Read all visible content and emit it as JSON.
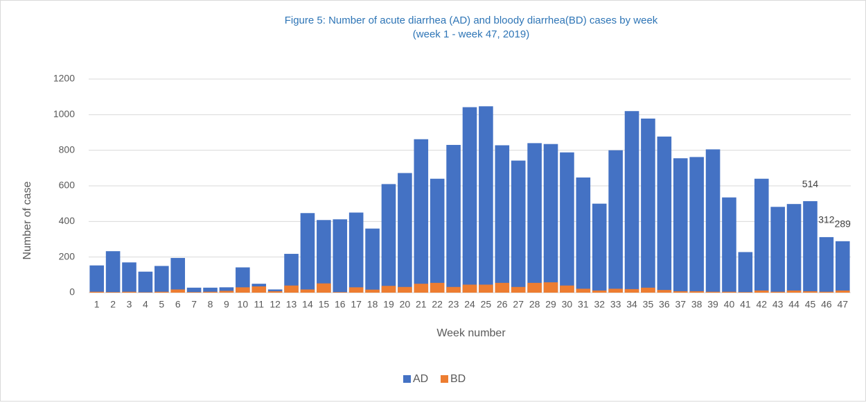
{
  "chart_data": {
    "type": "bar",
    "title": "Figure 5: Number of acute diarrhea (AD) and bloody diarrhea(BD) cases by week",
    "subtitle": "(week 1 - week 47, 2019)",
    "x_label": "Week number",
    "y_label": "Number of case",
    "categories": [
      "1",
      "2",
      "3",
      "4",
      "5",
      "6",
      "7",
      "8",
      "9",
      "10",
      "11",
      "12",
      "13",
      "14",
      "15",
      "16",
      "17",
      "18",
      "19",
      "20",
      "21",
      "22",
      "23",
      "24",
      "25",
      "26",
      "27",
      "28",
      "29",
      "30",
      "31",
      "32",
      "33",
      "34",
      "35",
      "36",
      "37",
      "38",
      "39",
      "40",
      "41",
      "42",
      "43",
      "44",
      "45",
      "46",
      "47"
    ],
    "series": [
      {
        "name": "AD",
        "color": "#4472c4",
        "values": [
          153,
          233,
          170,
          118,
          150,
          195,
          28,
          28,
          30,
          142,
          50,
          18,
          218,
          447,
          408,
          412,
          450,
          360,
          610,
          672,
          862,
          640,
          830,
          1042,
          1047,
          828,
          742,
          840,
          835,
          788,
          647,
          500,
          800,
          1020,
          978,
          877,
          755,
          762,
          805,
          535,
          228,
          640,
          482,
          498,
          514,
          312,
          289
        ],
        "value_labels": [
          null,
          null,
          null,
          null,
          null,
          null,
          null,
          null,
          null,
          null,
          null,
          null,
          null,
          null,
          null,
          null,
          null,
          null,
          null,
          null,
          null,
          null,
          null,
          null,
          null,
          null,
          null,
          null,
          null,
          null,
          null,
          null,
          null,
          null,
          null,
          null,
          null,
          null,
          null,
          null,
          null,
          null,
          null,
          null,
          514,
          312,
          289
        ]
      },
      {
        "name": "BD",
        "color": "#ed7d31",
        "values": [
          5,
          3,
          5,
          2,
          5,
          18,
          3,
          5,
          10,
          30,
          35,
          8,
          40,
          18,
          52,
          3,
          30,
          17,
          38,
          32,
          50,
          55,
          32,
          45,
          45,
          55,
          32,
          55,
          58,
          40,
          22,
          12,
          22,
          20,
          28,
          15,
          8,
          8,
          5,
          5,
          3,
          12,
          5,
          12,
          8,
          5,
          12
        ]
      }
    ],
    "ylim": [
      0,
      1200
    ],
    "yticks": [
      0,
      200,
      400,
      600,
      800,
      1000,
      1200
    ],
    "grid": true,
    "legend": "bottom"
  }
}
